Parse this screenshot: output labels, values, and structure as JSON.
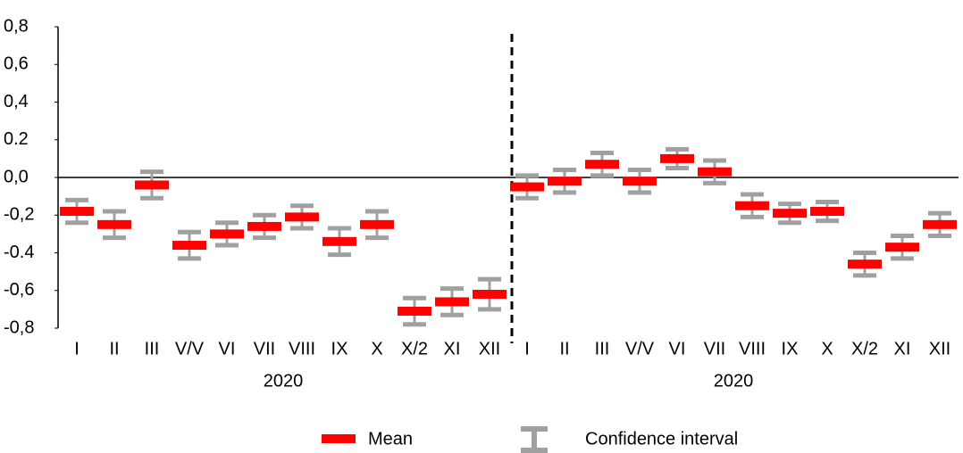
{
  "chart_data": {
    "type": "errorbar",
    "categories": [
      "I",
      "II",
      "III",
      "V/V",
      "VI",
      "VII",
      "VIII",
      "IX",
      "X",
      "X/2",
      "XI",
      "XII",
      "I",
      "II",
      "III",
      "V/V",
      "VI",
      "VII",
      "VIII",
      "IX",
      "X",
      "X/2",
      "XI",
      "XII"
    ],
    "group_labels": [
      "2020",
      "2020"
    ],
    "series": [
      {
        "name": "Mean",
        "color": "#ff0000",
        "values": [
          -0.18,
          -0.25,
          -0.04,
          -0.36,
          -0.3,
          -0.26,
          -0.21,
          -0.34,
          -0.25,
          -0.71,
          -0.66,
          -0.62,
          -0.05,
          -0.02,
          0.07,
          -0.02,
          0.1,
          0.03,
          -0.15,
          -0.19,
          -0.18,
          -0.46,
          -0.37,
          -0.25
        ],
        "errors": [
          0.06,
          0.07,
          0.07,
          0.07,
          0.06,
          0.06,
          0.06,
          0.07,
          0.07,
          0.07,
          0.07,
          0.08,
          0.06,
          0.06,
          0.06,
          0.06,
          0.05,
          0.06,
          0.06,
          0.05,
          0.05,
          0.06,
          0.06,
          0.06
        ],
        "error_name": "Confidence interval",
        "error_color": "#a0a0a0"
      }
    ],
    "ylim": [
      -0.8,
      0.8
    ],
    "yticks": [
      {
        "value": 0.8,
        "label": "0,8"
      },
      {
        "value": 0.6,
        "label": "0,6"
      },
      {
        "value": 0.4,
        "label": "0,4"
      },
      {
        "value": 0.2,
        "label": "0.2"
      },
      {
        "value": 0,
        "label": "0,0"
      },
      {
        "value": -0.2,
        "label": "-0,2"
      },
      {
        "value": -0.4,
        "label": "-0.4"
      },
      {
        "value": -0.6,
        "label": "-0,6"
      },
      {
        "value": -0.8,
        "label": "-0,8"
      }
    ],
    "grid": false
  }
}
